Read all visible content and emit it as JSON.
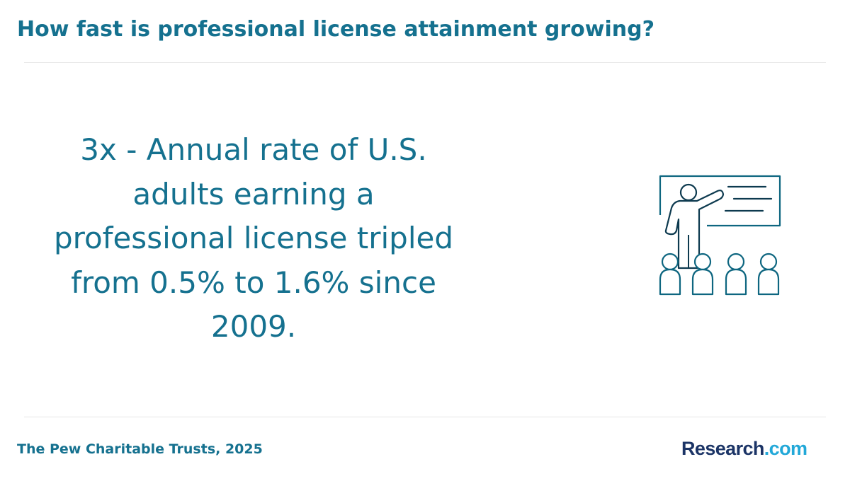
{
  "header": {
    "title": "How fast is professional license attainment growing?"
  },
  "stat": {
    "text": "3x - Annual rate of U.S. adults earning a professional license tripled from 0.5% to 1.6% since 2009."
  },
  "illustration": {
    "icon": "teacher-presentation-icon"
  },
  "footer": {
    "source": "The Pew Charitable Trusts, 2025",
    "brand_main": "Research",
    "brand_tld": ".com"
  },
  "colors": {
    "accent": "#15718f",
    "icon_stroke": "#0e6680",
    "icon_dark": "#0d3a4f",
    "brand_navy": "#1b3466",
    "brand_cyan": "#22a8d8"
  }
}
